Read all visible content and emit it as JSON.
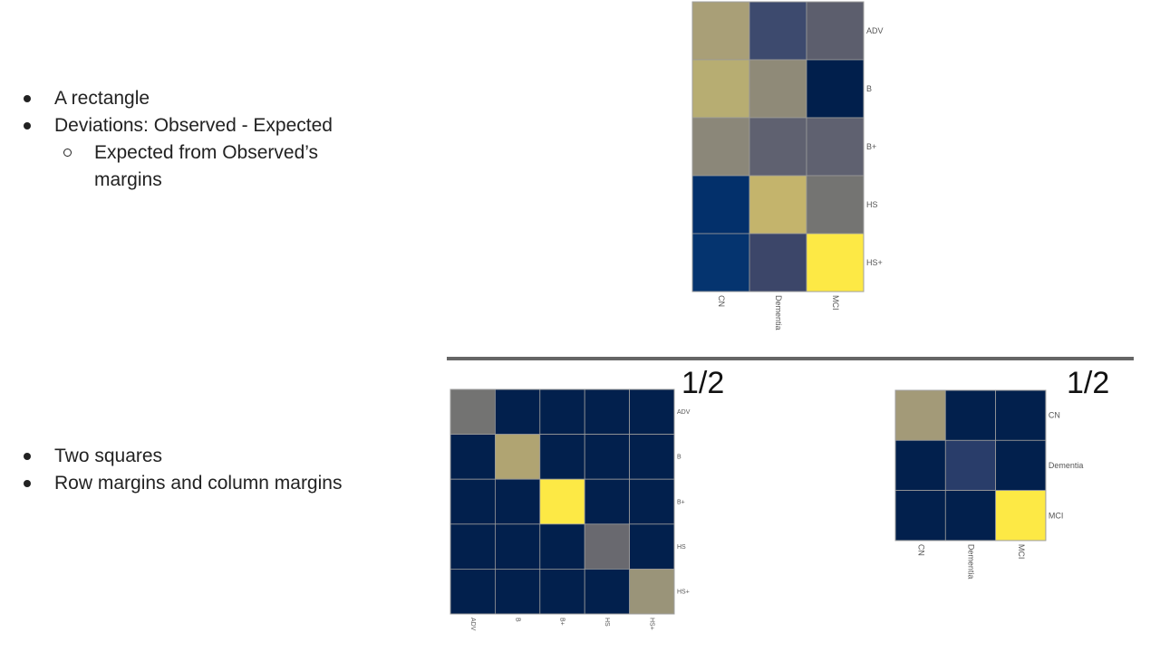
{
  "bullets_top": [
    {
      "text": "A rectangle",
      "level": 1
    },
    {
      "text": "Deviations: Observed - Expected",
      "level": 1
    },
    {
      "text": "Expected from Observed’s margins",
      "level": 2
    }
  ],
  "bullets_bottom": [
    {
      "text": "Two squares",
      "level": 1
    },
    {
      "text": "Row margins and column margins",
      "level": 1
    }
  ],
  "fraction_left": "1/2",
  "fraction_right": "1/2",
  "chart_data": [
    {
      "type": "heatmap",
      "name_hint": "deviations",
      "rows": [
        "ADV",
        "B",
        "B+",
        "HS",
        "HS+"
      ],
      "cols": [
        "CN",
        "Dementia",
        "MCI"
      ],
      "colors": [
        [
          "#a99f77",
          "#3d4a6e",
          "#5c5e6d"
        ],
        [
          "#b7ad72",
          "#8f8a78",
          "#011f4c"
        ],
        [
          "#8b8779",
          "#5f6170",
          "#5f6170"
        ],
        [
          "#03306b",
          "#c4b46c",
          "#747472"
        ],
        [
          "#05346f",
          "#3c4669",
          "#fde945"
        ]
      ]
    },
    {
      "type": "heatmap",
      "name_hint": "row-margins",
      "rows": [
        "ADV",
        "B",
        "B+",
        "HS",
        "HS+"
      ],
      "cols": [
        "ADV",
        "B",
        "B+",
        "HS",
        "HS+"
      ],
      "colors": [
        [
          "#737372",
          "#02204d",
          "#02204d",
          "#02204d",
          "#02204d"
        ],
        [
          "#02204d",
          "#b0a472",
          "#02204d",
          "#02204d",
          "#02204d"
        ],
        [
          "#02204d",
          "#02204d",
          "#fde945",
          "#02204d",
          "#02204d"
        ],
        [
          "#02204d",
          "#02204d",
          "#02204d",
          "#69696f",
          "#02204d"
        ],
        [
          "#02204d",
          "#02204d",
          "#02204d",
          "#02204d",
          "#9a9479"
        ]
      ]
    },
    {
      "type": "heatmap",
      "name_hint": "column-margins",
      "rows": [
        "CN",
        "Dementia",
        "MCI"
      ],
      "cols": [
        "CN",
        "Dementia",
        "MCI"
      ],
      "colors": [
        [
          "#a39a78",
          "#02204d",
          "#02204d"
        ],
        [
          "#02204d",
          "#293d6a",
          "#02204d"
        ],
        [
          "#02204d",
          "#02204d",
          "#fde945"
        ]
      ]
    }
  ]
}
